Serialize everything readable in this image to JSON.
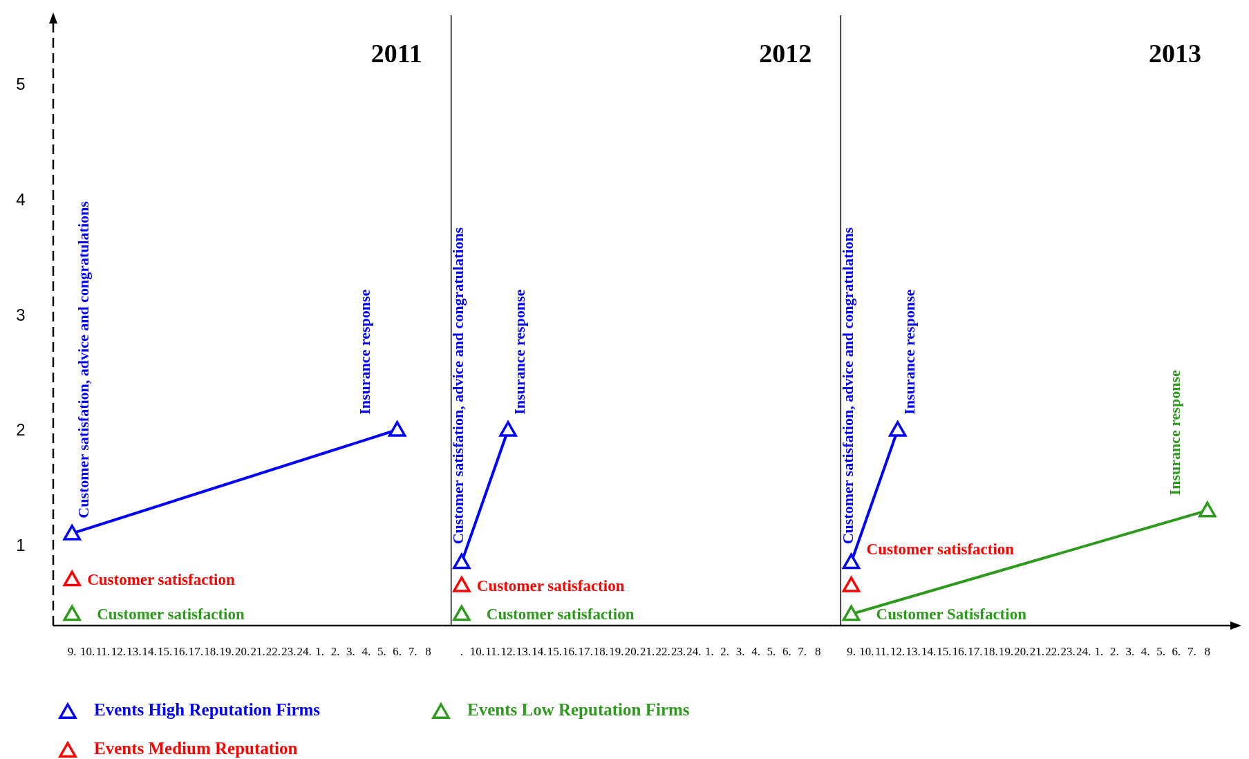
{
  "chart_data": [
    {
      "type": "line",
      "title": "2011",
      "categories": [
        "9.",
        "10.",
        "11.",
        "12.",
        "13.",
        "14.",
        "15.",
        "16.",
        "17.",
        "18.",
        "19.",
        "20.",
        "21.",
        "22.",
        "23.",
        "24.",
        "1.",
        "2.",
        "3.",
        "4.",
        "5.",
        "6.",
        "7.",
        "8"
      ],
      "ylim": [
        0.3,
        5.6
      ],
      "yticks": [
        1,
        2,
        3,
        4,
        5
      ],
      "marker": "triangle",
      "legend": "bottom",
      "series": [
        {
          "name": "Events High Reputation Firms",
          "color": "#0000ff",
          "x": [
            "9.",
            "6."
          ],
          "values": [
            1.1,
            2.0
          ]
        },
        {
          "name": "Events Medium Reputation",
          "color": "#ff0000",
          "type": "scatter",
          "x": [
            "9."
          ],
          "values": [
            0.7
          ]
        },
        {
          "name": "Events Low Reputation Firms",
          "color": "#2e9a1e",
          "type": "scatter",
          "x": [
            "9."
          ],
          "values": [
            0.4
          ]
        }
      ],
      "annotations": [
        {
          "text": "Customer satisfation, advice and congratulations",
          "x": "9.",
          "y": 1.1
        },
        {
          "text": "Insurance response",
          "x": "6.",
          "y": 2.0
        },
        {
          "text": "Customer satisfaction",
          "x": "9.",
          "y": 0.7
        },
        {
          "text": "Customer satisfaction",
          "x": "9.",
          "y": 0.4
        }
      ]
    },
    {
      "type": "line",
      "title": "2012",
      "categories": [
        ".",
        "10.",
        "11.",
        "12.",
        "13.",
        "14.",
        "15.",
        "16.",
        "17.",
        "18.",
        "19.",
        "20.",
        "21.",
        "22.",
        "23.",
        "24.",
        "1.",
        "2.",
        "3.",
        "4.",
        "5.",
        "6.",
        "7.",
        "8"
      ],
      "ylim": [
        0.3,
        5.6
      ],
      "marker": "triangle",
      "tick_labels": "x",
      "series": [
        {
          "color": "#0000ff",
          "x": [
            ".",
            "12."
          ],
          "values": [
            0.85,
            2.0
          ]
        },
        {
          "color": "#ff0000",
          "type": "scatter",
          "x": [
            "."
          ],
          "values": [
            0.65
          ]
        },
        {
          "color": "#2e9a1e",
          "type": "scatter",
          "x": [
            "."
          ],
          "values": [
            0.4
          ]
        }
      ],
      "annotations": [
        {
          "text": "Customer satisfation, advice and congratulations",
          "x": ".",
          "y": 0.85
        },
        {
          "text": "Insurance response",
          "x": "12.",
          "y": 2.0
        },
        {
          "text": "Customer satisfaction",
          "x": ".",
          "y": 0.65
        },
        {
          "text": "Customer satisfaction",
          "x": ".",
          "y": 0.4
        }
      ]
    },
    {
      "type": "line",
      "title": "2013",
      "categories": [
        "9.",
        "10.",
        "11.",
        "12.",
        "13.",
        "14.",
        "15.",
        "16.",
        "17.",
        "18.",
        "19.",
        "20.",
        "21.",
        "22.",
        "23.",
        "24.",
        "1.",
        "2.",
        "3.",
        "4.",
        "5.",
        "6.",
        "7.",
        "8"
      ],
      "ylim": [
        0.3,
        5.6
      ],
      "marker": "triangle",
      "tick_labels": "x",
      "series": [
        {
          "color": "#0000ff",
          "x": [
            "9.",
            "12."
          ],
          "values": [
            0.85,
            2.0
          ]
        },
        {
          "color": "#ff0000",
          "type": "scatter",
          "x": [
            "9."
          ],
          "values": [
            0.65
          ]
        },
        {
          "color": "#2e9a1e",
          "x": [
            "9.",
            "8"
          ],
          "values": [
            0.4,
            1.3
          ]
        }
      ],
      "annotations": [
        {
          "text": "Customer satisfation, advice and congratulations",
          "x": "9.",
          "y": 0.85
        },
        {
          "text": "Insurance response",
          "x": "12.",
          "y": 2.0
        },
        {
          "text": "Customer satisfaction",
          "x": "9.",
          "y": 0.65
        },
        {
          "text": "Customer Satisfaction",
          "x": "9.",
          "y": 0.4
        },
        {
          "text": "Insurance response",
          "x": "8",
          "y": 1.3
        }
      ]
    }
  ]
}
